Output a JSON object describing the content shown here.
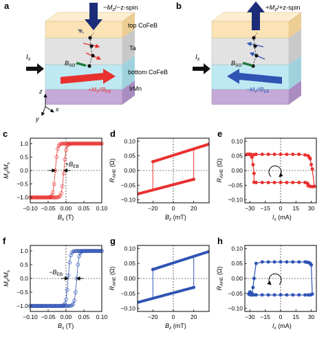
{
  "panels": {
    "a": {
      "label": "a",
      "spin_label": "−M",
      "spin_label_sub": "z",
      "spin_label_rest": "/−z-spin",
      "layer_top": "top CoFeB",
      "layer_ta": "Ta",
      "layer_bottom": "bottom CoFeB",
      "layer_irmn": "IrMn",
      "current_label": "I",
      "current_sub": "x",
      "bso_label": "B",
      "bso_sub": "SO",
      "bottom_arrow_label": "+M",
      "bottom_arrow_sub": "x",
      "bottom_arrow_rest": "//B",
      "bottom_arrow_sub2": "EB",
      "axis_z": "z",
      "axis_x": "x",
      "axis_y": "y"
    },
    "b": {
      "label": "b",
      "spin_label": "+M",
      "spin_label_sub": "z",
      "spin_label_rest": "/+z-spin",
      "current_label": "I",
      "current_sub": "x",
      "bso_label": "B",
      "bso_sub": "SO",
      "bottom_arrow_label": "−M",
      "bottom_arrow_sub": "x",
      "bottom_arrow_rest": "//B",
      "bottom_arrow_sub2": "EB"
    }
  },
  "colors": {
    "red": "#e8312f",
    "blue": "#2f54b4",
    "layer_top": "#fbe3b6",
    "layer_ta": "#dcdcdc",
    "layer_bottom": "#bfe9f2",
    "layer_irmn": "#c5a9d8",
    "spin_arrow": "#1c2c78"
  },
  "chart_data": [
    {
      "id": "c",
      "label": "c",
      "type": "line",
      "color": "#e8312f",
      "xlabel": "B",
      "xlabel_sub": "x",
      "xlabel_unit": " (T)",
      "ylabel": "M",
      "ylabel_sub": "x",
      "ylabel_rest": "/M",
      "ylabel_sub2": "s",
      "xlim": [
        -0.1,
        0.1
      ],
      "ylim": [
        -1.2,
        1.2
      ],
      "xticks": [
        -0.1,
        -0.05,
        0.0,
        0.05,
        0.1
      ],
      "xtick_labels": [
        "−0.10",
        "−0.05",
        "0.00",
        "0.05",
        "0.10"
      ],
      "yticks": [
        -1.0,
        -0.5,
        0.0,
        0.5,
        1.0
      ],
      "ytick_labels": [
        "−1.0",
        "−0.5",
        "0.0",
        "0.5",
        "1.0"
      ],
      "annotation": "+B",
      "annotation_sub": "EB",
      "loop": {
        "center": -0.018,
        "halfwidth": 0.012,
        "width": 0.006
      }
    },
    {
      "id": "d",
      "label": "d",
      "type": "line",
      "color": "#e8312f",
      "xlabel": "B",
      "xlabel_sub": "z",
      "xlabel_unit": " (mT)",
      "ylabel": "R",
      "ylabel_sub": "AHE",
      "ylabel_unit": " (Ω)",
      "xlim": [
        -35,
        35
      ],
      "ylim": [
        -0.11,
        0.11
      ],
      "xticks": [
        -20,
        0,
        20
      ],
      "xtick_labels": [
        "−20",
        "0",
        "20"
      ],
      "yticks": [
        -0.1,
        -0.05,
        0.0,
        0.05,
        0.1
      ],
      "ytick_labels": [
        "−0.10",
        "−0.05",
        "0.00",
        "0.05",
        "0.10"
      ],
      "upper_branch": {
        "x": [
          -20,
          35
        ],
        "y": [
          0.03,
          0.09
        ]
      },
      "lower_branch": {
        "x": [
          -35,
          20
        ],
        "y": [
          -0.08,
          -0.03
        ]
      },
      "switch_up_x": -20,
      "switch_down_x": 20,
      "markers": [
        {
          "x": -20,
          "y": 0.03
        },
        {
          "x": 20,
          "y": -0.03
        }
      ]
    },
    {
      "id": "e",
      "label": "e",
      "type": "scatter",
      "color": "#e8312f",
      "xlabel": "I",
      "xlabel_sub": "x",
      "xlabel_unit": " (mA)",
      "ylabel": "R",
      "ylabel_sub": "AHE",
      "ylabel_unit": " (Ω)",
      "xlim": [
        -35,
        35
      ],
      "ylim": [
        -0.11,
        0.11
      ],
      "xticks": [
        -30,
        -15,
        0,
        15,
        30
      ],
      "xtick_labels": [
        "−30",
        "−15",
        "0",
        "15",
        "30"
      ],
      "yticks": [
        -0.1,
        -0.05,
        0.0,
        0.05,
        0.1
      ],
      "ytick_labels": [
        "−0.10",
        "−0.05",
        "0.00",
        "0.05",
        "0.10"
      ],
      "rotation": "clockwise",
      "x": [
        -33,
        -31,
        -29,
        -26,
        -24,
        -18,
        -12,
        -6,
        0,
        6,
        12,
        18,
        24,
        27,
        28,
        29,
        30,
        31,
        33,
        31,
        29,
        27,
        27,
        26,
        24,
        18,
        12,
        6,
        0,
        -6,
        -12,
        -18,
        -24,
        -26,
        -26,
        -27,
        -28,
        -29,
        -31
      ],
      "y": [
        0.055,
        0.056,
        0.055,
        0.054,
        0.055,
        0.055,
        0.055,
        0.055,
        0.055,
        0.055,
        0.055,
        0.055,
        0.053,
        0.05,
        0.045,
        0.04,
        0.02,
        0.005,
        -0.054,
        -0.055,
        -0.054,
        -0.052,
        -0.048,
        -0.043,
        -0.041,
        -0.041,
        -0.041,
        -0.041,
        -0.041,
        -0.041,
        -0.041,
        -0.041,
        -0.041,
        -0.04,
        -0.01,
        0.02,
        0.045,
        0.052,
        0.055
      ]
    },
    {
      "id": "f",
      "label": "f",
      "type": "line",
      "color": "#2f54b4",
      "xlabel": "B",
      "xlabel_sub": "x",
      "xlabel_unit": " (T)",
      "ylabel": "M",
      "ylabel_sub": "x",
      "ylabel_rest": "/M",
      "ylabel_sub2": "s",
      "xlim": [
        -0.1,
        0.1
      ],
      "ylim": [
        -1.2,
        1.2
      ],
      "xticks": [
        -0.1,
        -0.05,
        0.0,
        0.05,
        0.1
      ],
      "xtick_labels": [
        "−0.10",
        "−0.05",
        "0.00",
        "0.05",
        "0.10"
      ],
      "yticks": [
        -1.0,
        -0.5,
        0.0,
        0.5,
        1.0
      ],
      "ytick_labels": [
        "−1.0",
        "−0.5",
        "0.0",
        "0.5",
        "1.0"
      ],
      "annotation": "−B",
      "annotation_sub": "EB",
      "loop": {
        "center": 0.018,
        "halfwidth": 0.012,
        "width": 0.006
      }
    },
    {
      "id": "g",
      "label": "g",
      "type": "line",
      "color": "#2f54b4",
      "xlabel": "B",
      "xlabel_sub": "z",
      "xlabel_unit": " (mT)",
      "ylabel": "R",
      "ylabel_sub": "AHE",
      "ylabel_unit": " (Ω)",
      "xlim": [
        -35,
        35
      ],
      "ylim": [
        -0.11,
        0.11
      ],
      "xticks": [
        -20,
        0,
        20
      ],
      "xtick_labels": [
        "−20",
        "0",
        "20"
      ],
      "yticks": [
        -0.1,
        -0.05,
        0.0,
        0.05,
        0.1
      ],
      "ytick_labels": [
        "−0.10",
        "−0.05",
        "0.00",
        "0.05",
        "0.10"
      ],
      "upper_branch": {
        "x": [
          -20,
          35
        ],
        "y": [
          0.03,
          0.09
        ]
      },
      "lower_branch": {
        "x": [
          -35,
          20
        ],
        "y": [
          -0.08,
          -0.03
        ]
      },
      "switch_up_x": -20,
      "switch_down_x": 20,
      "markers": [
        {
          "x": -20,
          "y": 0.03
        },
        {
          "x": 20,
          "y": -0.03
        }
      ]
    },
    {
      "id": "h",
      "label": "h",
      "type": "scatter",
      "color": "#2f54b4",
      "xlabel": "I",
      "xlabel_sub": "x",
      "xlabel_unit": " (mA)",
      "ylabel": "R",
      "ylabel_sub": "AHE",
      "ylabel_unit": " (Ω)",
      "xlim": [
        -35,
        35
      ],
      "ylim": [
        -0.11,
        0.11
      ],
      "xticks": [
        -30,
        -15,
        0,
        15,
        30
      ],
      "xtick_labels": [
        "−30",
        "−15",
        "0",
        "15",
        "30"
      ],
      "yticks": [
        -0.1,
        -0.05,
        0.0,
        0.05,
        0.1
      ],
      "ytick_labels": [
        "−0.10",
        "−0.05",
        "0.00",
        "0.05",
        "0.10"
      ],
      "rotation": "counterclockwise",
      "x": [
        -29,
        -28,
        -27,
        -26,
        -24,
        -18,
        -12,
        -6,
        0,
        6,
        12,
        18,
        24,
        26,
        27,
        28,
        29,
        30,
        31,
        30,
        29,
        27,
        24,
        18,
        12,
        6,
        0,
        -6,
        -12,
        -18,
        -24,
        -26,
        -28,
        -29,
        -31,
        -31,
        -30
      ],
      "y": [
        -0.055,
        -0.05,
        -0.03,
        0.0,
        0.05,
        0.055,
        0.055,
        0.055,
        0.055,
        0.055,
        0.055,
        0.055,
        0.055,
        0.054,
        0.053,
        0.052,
        0.05,
        0.045,
        -0.052,
        -0.054,
        -0.055,
        -0.055,
        -0.055,
        -0.055,
        -0.055,
        -0.055,
        -0.055,
        -0.055,
        -0.055,
        -0.055,
        -0.055,
        -0.055,
        -0.055,
        -0.054,
        -0.053,
        -0.05,
        -0.045
      ]
    }
  ]
}
